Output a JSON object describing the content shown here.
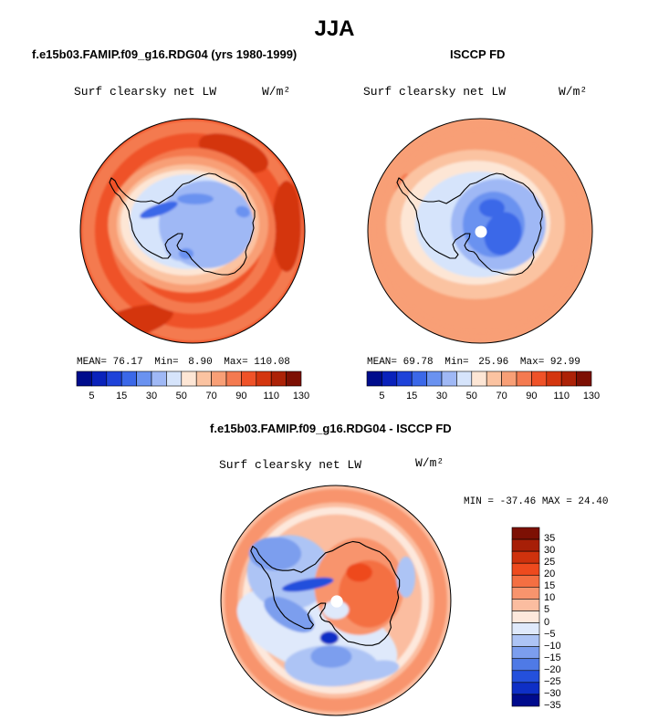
{
  "figure_title": "JJA",
  "panels": [
    {
      "subtitle": "f.e15b03.FAMIP.f09_g16.RDG04 (yrs 1980-1999)",
      "variable_label": "Surf clearsky net LW",
      "units": "W/m²",
      "stats": {
        "mean_label": "MEAN=",
        "mean": "76.17",
        "min_label": "Min=",
        "min": "8.90",
        "max_label": "Max=",
        "max": "110.08"
      },
      "colorbar_ticks": [
        "5",
        "15",
        "30",
        "50",
        "70",
        "90",
        "110",
        "130"
      ]
    },
    {
      "subtitle": "ISCCP FD",
      "variable_label": "Surf clearsky net LW",
      "units": "W/m²",
      "stats": {
        "mean_label": "MEAN=",
        "mean": "69.78",
        "min_label": "Min=",
        "min": "25.96",
        "max_label": "Max=",
        "max": "92.99"
      },
      "colorbar_ticks": [
        "5",
        "15",
        "30",
        "50",
        "70",
        "90",
        "110",
        "130"
      ]
    },
    {
      "subtitle": "f.e15b03.FAMIP.f09_g16.RDG04 - ISCCP FD",
      "variable_label": "Surf clearsky net LW",
      "units": "W/m²",
      "stats_line": "MIN = -37.46 MAX =  24.40",
      "colorbar_ticks": [
        "35",
        "30",
        "25",
        "20",
        "15",
        "10",
        "5",
        "0",
        "−5",
        "−10",
        "−15",
        "−20",
        "−25",
        "−30",
        "−35"
      ]
    }
  ],
  "colors": {
    "abs_scale": [
      "#000c8c",
      "#0a22bb",
      "#1f43d9",
      "#3b68e8",
      "#6a92f0",
      "#9fb8f5",
      "#d6e4fb",
      "#fde6d5",
      "#fbc3a1",
      "#f89f76",
      "#f47a50",
      "#ef5228",
      "#d4360f",
      "#ac2207",
      "#7d1004"
    ],
    "diff_scale": [
      "#7d1004",
      "#a71f07",
      "#cf320d",
      "#ee4a1e",
      "#f46f42",
      "#f8946d",
      "#fbbda0",
      "#fde8dc",
      "#dfe9fb",
      "#adc4f5",
      "#7c9eee",
      "#4f7ae6",
      "#2450dc",
      "#0e2fc6",
      "#000b8d"
    ]
  },
  "chart_data": [
    {
      "type": "heatmap",
      "title": "f.e15b03.FAMIP.f09_g16.RDG04 (yrs 1980-1999)",
      "variable": "Surf clearsky net LW",
      "units": "W/m²",
      "season": "JJA",
      "projection": "south polar stereographic",
      "mean": 76.17,
      "min": 8.9,
      "max": 110.08,
      "contour_levels": [
        5,
        10,
        15,
        20,
        30,
        40,
        50,
        60,
        70,
        80,
        90,
        100,
        110,
        120,
        130
      ]
    },
    {
      "type": "heatmap",
      "title": "ISCCP FD",
      "variable": "Surf clearsky net LW",
      "units": "W/m²",
      "season": "JJA",
      "projection": "south polar stereographic",
      "mean": 69.78,
      "min": 25.96,
      "max": 92.99,
      "contour_levels": [
        5,
        10,
        15,
        20,
        30,
        40,
        50,
        60,
        70,
        80,
        90,
        100,
        110,
        120,
        130
      ]
    },
    {
      "type": "heatmap",
      "title": "f.e15b03.FAMIP.f09_g16.RDG04 - ISCCP FD",
      "variable": "Surf clearsky net LW",
      "units": "W/m²",
      "season": "JJA",
      "projection": "south polar stereographic",
      "min": -37.46,
      "max": 24.4,
      "contour_levels": [
        -35,
        -30,
        -25,
        -20,
        -15,
        -10,
        -5,
        0,
        5,
        10,
        15,
        20,
        25,
        30,
        35
      ]
    }
  ]
}
